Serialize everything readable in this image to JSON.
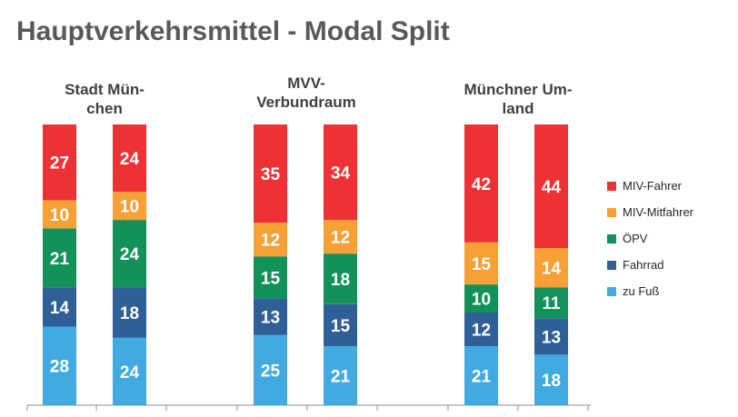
{
  "title": "Hauptverkehrsmittel - Modal Split",
  "colors": {
    "MIV-Fahrer": "#ee3135",
    "MIV-Mitfahrer": "#f7a036",
    "ÖPV": "#12925a",
    "Fahrrad": "#2f5f97",
    "zu Fuß": "#41abe1"
  },
  "chart_data": {
    "type": "bar",
    "stacked": true,
    "groups": [
      {
        "label_lines": [
          "Stadt Mün-",
          "chen"
        ],
        "bars": 2
      },
      {
        "label_lines": [
          "MVV-",
          "Verbundraum"
        ],
        "bars": 2
      },
      {
        "label_lines": [
          "Münchner Um-",
          "land"
        ],
        "bars": 2
      }
    ],
    "legend_position": "right",
    "series": [
      {
        "name": "MIV-Fahrer",
        "values": [
          27,
          24,
          35,
          34,
          42,
          44
        ]
      },
      {
        "name": "MIV-Mitfahrer",
        "values": [
          10,
          10,
          12,
          12,
          15,
          14
        ]
      },
      {
        "name": "ÖPV",
        "values": [
          21,
          24,
          15,
          18,
          10,
          11
        ]
      },
      {
        "name": "Fahrrad",
        "values": [
          14,
          18,
          13,
          15,
          12,
          13
        ]
      },
      {
        "name": "zu Fuß",
        "values": [
          28,
          24,
          25,
          21,
          21,
          18
        ]
      }
    ]
  }
}
